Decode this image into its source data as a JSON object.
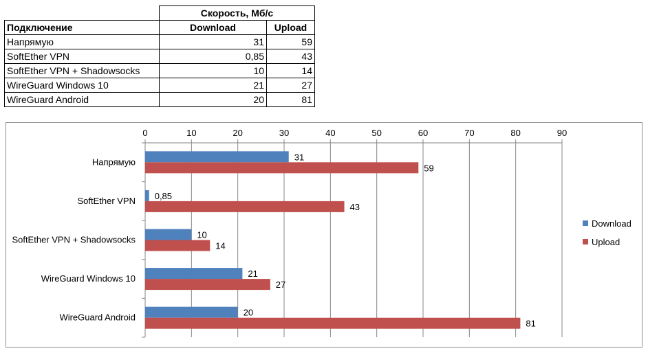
{
  "table": {
    "group_header": "Скорость, Мб/с",
    "headers": [
      "Подключение",
      "Download",
      "Upload"
    ],
    "rows": [
      {
        "name": "Напрямую",
        "download": "31",
        "upload": "59"
      },
      {
        "name": "SoftEther VPN",
        "download": "0,85",
        "upload": "43"
      },
      {
        "name": "SoftEther VPN + Shadowsocks",
        "download": "10",
        "upload": "14"
      },
      {
        "name": "WireGuard Windows 10",
        "download": "21",
        "upload": "27"
      },
      {
        "name": "WireGuard Android",
        "download": "20",
        "upload": "81"
      }
    ]
  },
  "chart_data": {
    "type": "bar",
    "orientation": "horizontal",
    "categories": [
      "Напрямую",
      "SoftEther VPN",
      "SoftEther VPN + Shadowsocks",
      "WireGuard Windows 10",
      "WireGuard Android"
    ],
    "series": [
      {
        "name": "Download",
        "color": "#4f81bd",
        "values": [
          31,
          0.85,
          10,
          21,
          20
        ],
        "labels": [
          "31",
          "0,85",
          "10",
          "21",
          "20"
        ]
      },
      {
        "name": "Upload",
        "color": "#c0504d",
        "values": [
          59,
          43,
          14,
          27,
          81
        ],
        "labels": [
          "59",
          "43",
          "14",
          "27",
          "81"
        ]
      }
    ],
    "xlim": [
      0,
      90
    ],
    "xticks": [
      0,
      10,
      20,
      30,
      40,
      50,
      60,
      70,
      80,
      90
    ],
    "x_axis_position": "top",
    "grid": true,
    "legend_position": "right",
    "title": "",
    "xlabel": "",
    "ylabel": ""
  }
}
